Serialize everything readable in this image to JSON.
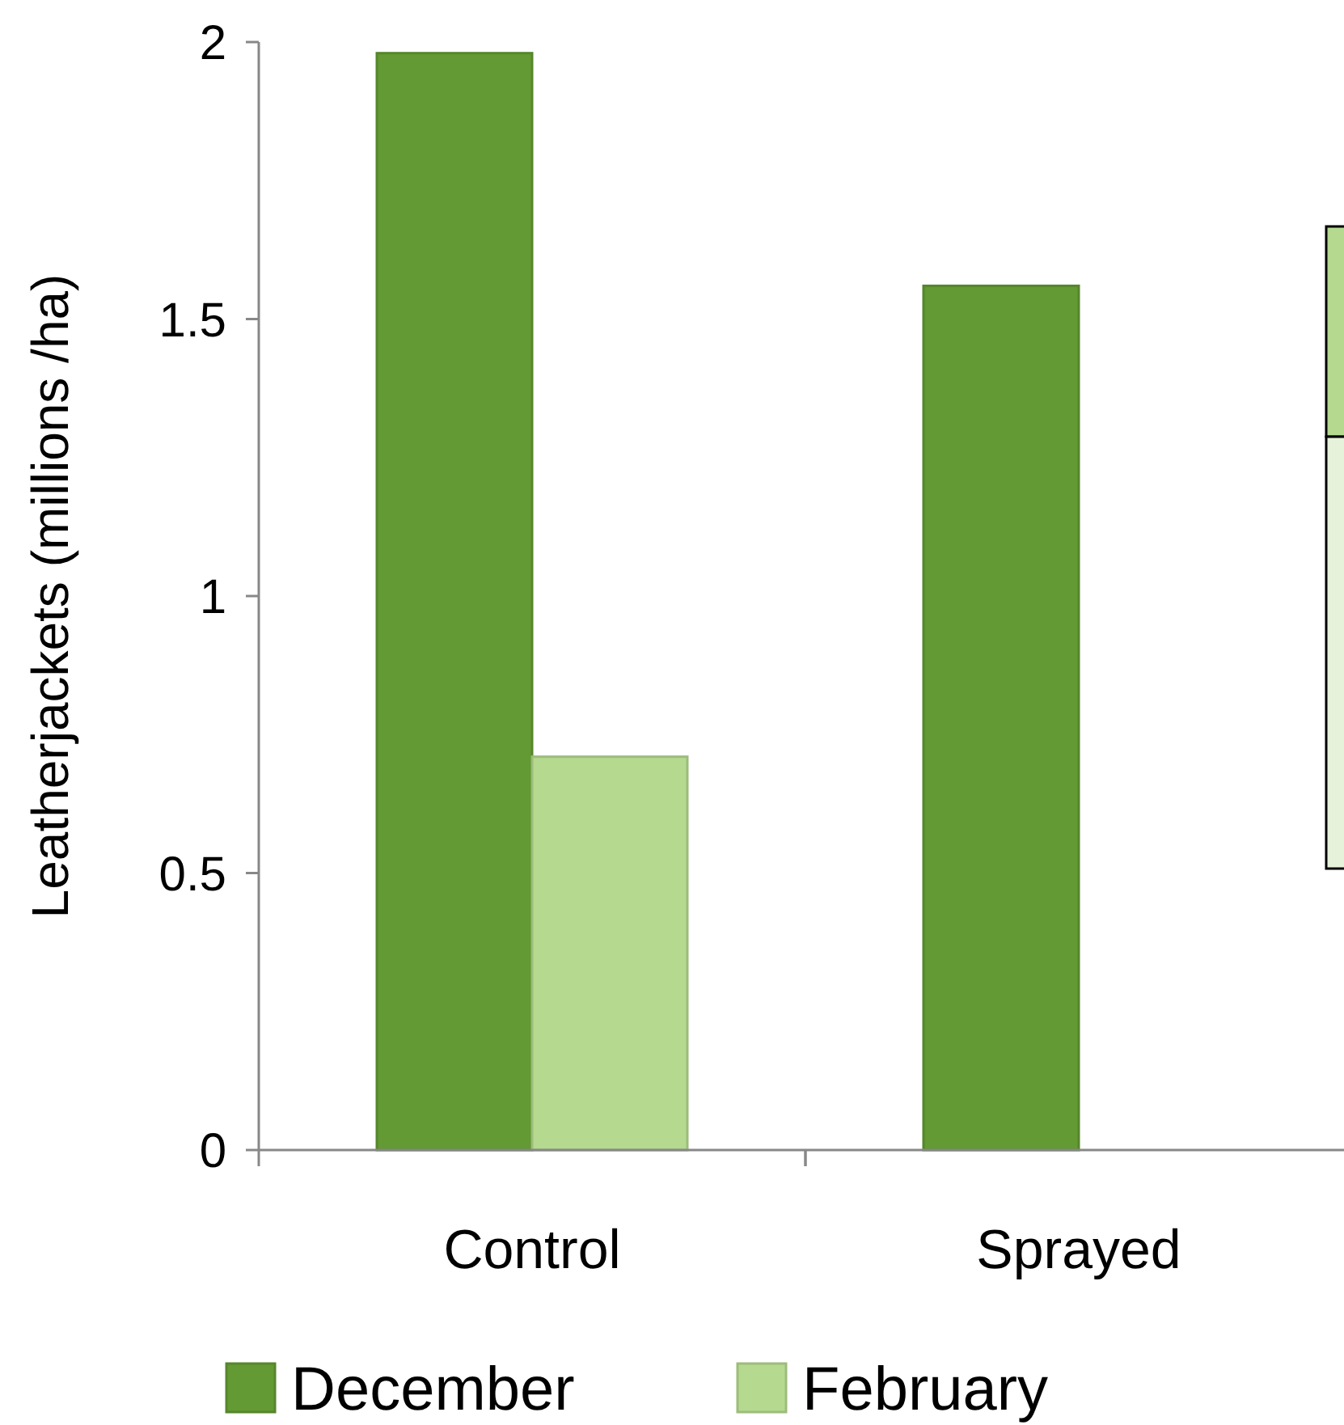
{
  "chart_data": {
    "type": "bar",
    "ylabel": "Leatherjackets (millions /ha)",
    "categories": [
      "Control",
      "Sprayed"
    ],
    "series": [
      {
        "name": "December",
        "color": "#639a33",
        "values": [
          1.98,
          1.56
        ]
      },
      {
        "name": "February",
        "color": "#b5d98f",
        "values": [
          0.71,
          null
        ]
      }
    ],
    "ylim": [
      0,
      2
    ],
    "yticks": [
      0,
      0.5,
      1,
      1.5,
      2
    ],
    "grid": false,
    "legend": "bottom"
  }
}
